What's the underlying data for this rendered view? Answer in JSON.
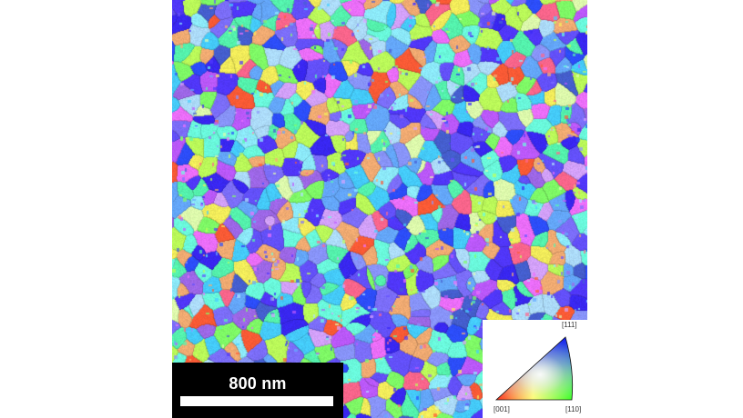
{
  "figure": {
    "scale_bar": {
      "label": "800 nm"
    },
    "ipf_legend": {
      "top_label": "[111]",
      "left_label": "[001]",
      "right_label": "[110]"
    },
    "colors": {
      "background": "#ffffff",
      "scale_bar_background": "#000000",
      "scale_bar_foreground": "#ffffff",
      "ipf_001": "#ff0000",
      "ipf_110": "#00ff00",
      "ipf_111": "#0000ff"
    }
  }
}
